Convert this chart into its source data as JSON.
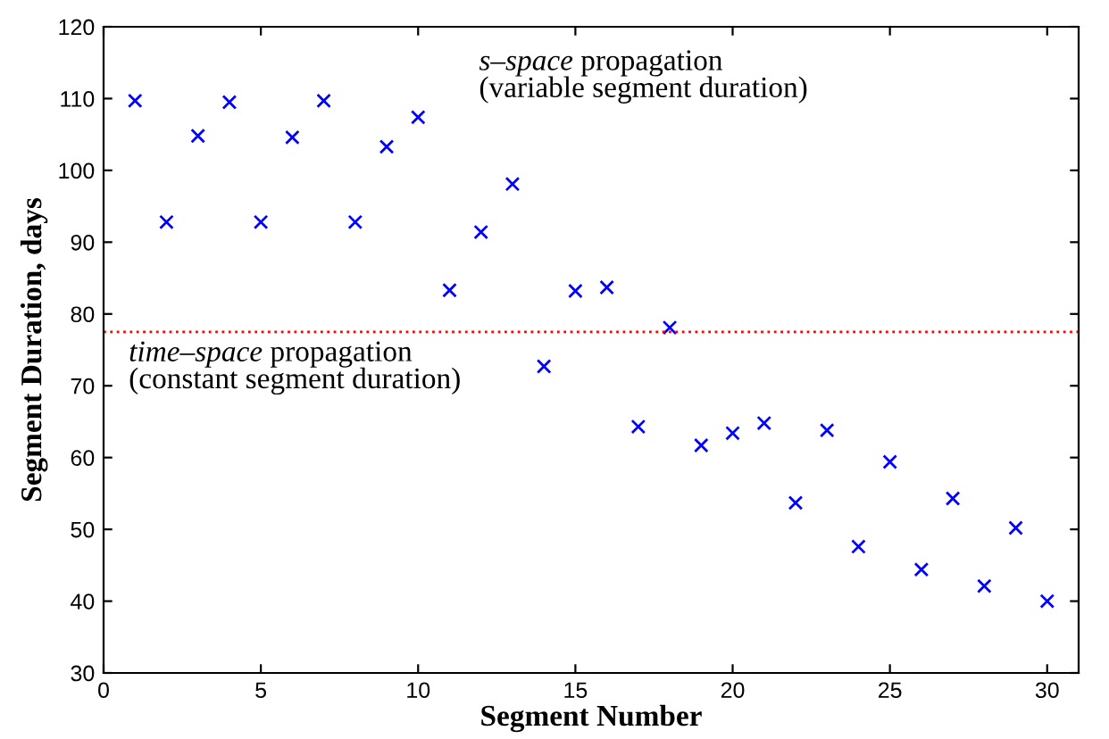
{
  "chart_data": {
    "type": "scatter",
    "xlabel": "Segment Number",
    "ylabel": "Segment Duration, days",
    "x": [
      1,
      2,
      3,
      4,
      5,
      6,
      7,
      8,
      9,
      10,
      11,
      12,
      13,
      14,
      15,
      16,
      17,
      18,
      19,
      20,
      21,
      22,
      23,
      24,
      25,
      26,
      27,
      28,
      29,
      30
    ],
    "series": [
      {
        "color": "#0000ff",
        "values": [
          109.7,
          92.8,
          104.8,
          109.5,
          92.8,
          104.6,
          109.7,
          92.8,
          103.3,
          107.4,
          83.3,
          91.4,
          98.1,
          72.7,
          83.2,
          83.7,
          64.3,
          78.1,
          61.7,
          63.4,
          64.8,
          53.7,
          63.8,
          47.6,
          59.4,
          44.4,
          54.3,
          42.1,
          50.2,
          40.0
        ]
      }
    ],
    "marker": "cross",
    "grid": false,
    "legend": false,
    "xlim": [
      0,
      31
    ],
    "xticks": [
      0,
      5,
      10,
      15,
      20,
      25,
      30
    ],
    "ylim": [
      30,
      120
    ],
    "yticks": [
      30,
      40,
      50,
      60,
      70,
      80,
      90,
      100,
      110,
      120
    ],
    "ref_lines": [
      {
        "axis": "y",
        "value": 77.5,
        "label": "time–space propagation\n(constant segment duration)",
        "color": "#ff0000",
        "line_style": "dotted"
      }
    ],
    "annotations": [
      "s–space propagation\n(variable segment duration)"
    ]
  }
}
